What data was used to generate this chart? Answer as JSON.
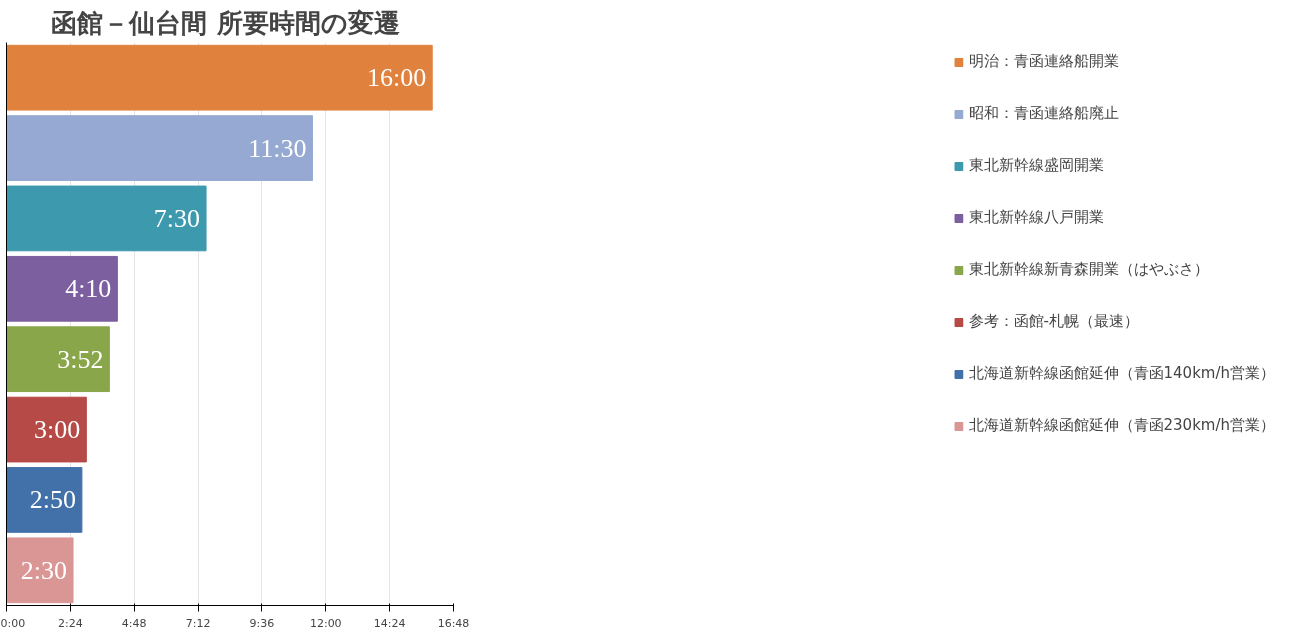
{
  "chart_data": {
    "type": "bar",
    "orientation": "horizontal",
    "title": "函館－仙台間  所要時間の変遷",
    "categories": [
      null,
      null,
      null,
      null,
      null,
      null,
      null,
      null
    ],
    "series": [
      {
        "name": "明治：青函連絡船開業",
        "color": "#e0823d",
        "values": [
          16,
          null,
          null,
          null,
          null,
          null,
          null,
          null
        ],
        "value_labels": [
          "16:00",
          null,
          null,
          null,
          null,
          null,
          null,
          null
        ]
      },
      {
        "name": "昭和：青函連絡船廃止",
        "color": "#95a9d2",
        "values": [
          null,
          11.5,
          null,
          null,
          null,
          null,
          null,
          null
        ],
        "value_labels": [
          null,
          "11:30",
          null,
          null,
          null,
          null,
          null,
          null
        ]
      },
      {
        "name": "東北新幹線盛岡開業",
        "color": "#3d9aae",
        "values": [
          null,
          null,
          7.5,
          null,
          null,
          null,
          null,
          null
        ],
        "value_labels": [
          null,
          null,
          "7:30",
          null,
          null,
          null,
          null,
          null
        ]
      },
      {
        "name": "東北新幹線八戸開業",
        "color": "#7b5f9e",
        "values": [
          null,
          null,
          null,
          4.1667,
          null,
          null,
          null,
          null
        ],
        "value_labels": [
          null,
          null,
          null,
          "4:10",
          null,
          null,
          null,
          null
        ]
      },
      {
        "name": "東北新幹線新青森開業（はやぶさ）",
        "color": "#8aa64b",
        "values": [
          null,
          null,
          null,
          null,
          3.8667,
          null,
          null,
          null
        ],
        "value_labels": [
          null,
          null,
          null,
          null,
          "3:52",
          null,
          null,
          null
        ]
      },
      {
        "name": "参考：函館-札幌（最速）",
        "color": "#b64a46",
        "values": [
          null,
          null,
          null,
          null,
          null,
          3,
          null,
          null
        ],
        "value_labels": [
          null,
          null,
          null,
          null,
          null,
          "3:00",
          null,
          null
        ]
      },
      {
        "name": "北海道新幹線函館延伸（青函140km/h営業）",
        "color": "#4271a9",
        "values": [
          null,
          null,
          null,
          null,
          null,
          null,
          2.8333,
          null
        ],
        "value_labels": [
          null,
          null,
          null,
          null,
          null,
          null,
          "2:50",
          null
        ]
      },
      {
        "name": "北海道新幹線函館延伸（青函230km/h営業）",
        "color": "#d99694",
        "values": [
          null,
          null,
          null,
          null,
          null,
          null,
          null,
          2.5
        ],
        "value_labels": [
          null,
          null,
          null,
          null,
          null,
          null,
          null,
          "2:30"
        ]
      }
    ],
    "xlim": [
      0,
      16.8
    ],
    "xticks": [
      {
        "value": 0,
        "label": "0:00"
      },
      {
        "value": 2.4,
        "label": "2:24"
      },
      {
        "value": 4.8,
        "label": "4:48"
      },
      {
        "value": 7.2,
        "label": "7:12"
      },
      {
        "value": 9.6,
        "label": "9:36"
      },
      {
        "value": 12,
        "label": "12:00"
      },
      {
        "value": 14.4,
        "label": "14:24"
      },
      {
        "value": 16.8,
        "label": "16:48"
      }
    ],
    "grid": "x",
    "legend": "right"
  }
}
